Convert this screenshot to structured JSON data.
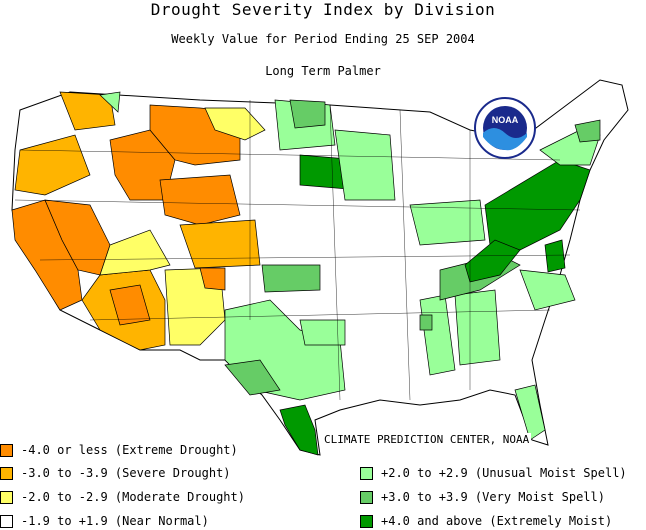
{
  "header": {
    "title": "Drought Severity Index by Division",
    "subtitle": "Weekly Value for Period Ending 25 SEP 2004",
    "index_name": "Long Term Palmer"
  },
  "logo": {
    "text": "NOAA",
    "ring": "#1a2a8c"
  },
  "credit": "CLIMATE PREDICTION CENTER, NOAA",
  "colors": {
    "extreme_drought": "#ff8c00",
    "severe_drought": "#ffb400",
    "moderate_drought": "#ffff66",
    "near_normal": "#ffffff",
    "unusual_moist": "#99ff99",
    "very_moist": "#66cc66",
    "extremely_moist": "#009900"
  },
  "legend": {
    "left": [
      {
        "label": "-4.0 or less (Extreme Drought)",
        "color": "#ff8c00"
      },
      {
        "label": "-3.0 to -3.9 (Severe Drought)",
        "color": "#ffb400"
      },
      {
        "label": "-2.0 to -2.9 (Moderate Drought)",
        "color": "#ffff66"
      },
      {
        "label": "-1.9 to +1.9 (Near Normal)",
        "color": "#ffffff"
      }
    ],
    "right": [
      {
        "label": "+2.0 to +2.9 (Unusual Moist Spell)",
        "color": "#99ff99"
      },
      {
        "label": "+3.0 to +3.9 (Very Moist Spell)",
        "color": "#66cc66"
      },
      {
        "label": "+4.0 and above (Extremely Moist)",
        "color": "#009900"
      }
    ]
  }
}
